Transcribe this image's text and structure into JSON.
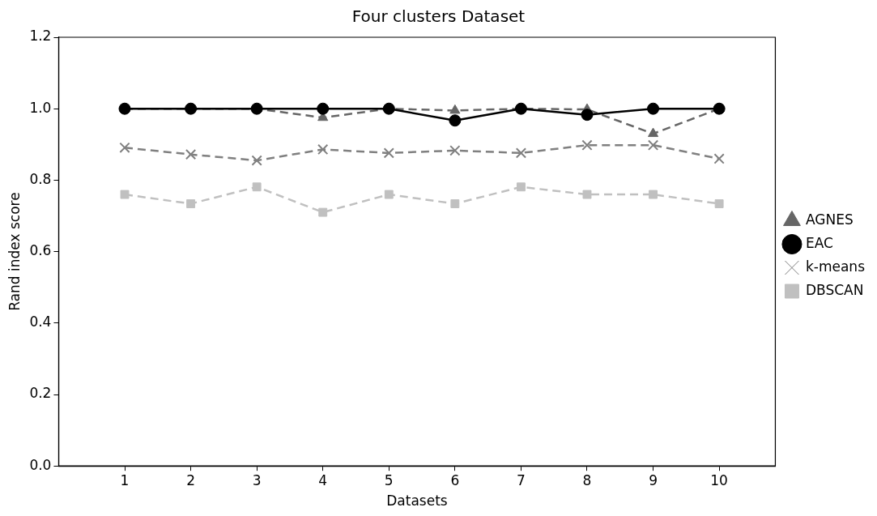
{
  "chart_data": {
    "type": "line",
    "title": "Four clusters Dataset",
    "xlabel": "Datasets",
    "ylabel": "Rand index score",
    "x": [
      1,
      2,
      3,
      4,
      5,
      6,
      7,
      8,
      9,
      10
    ],
    "xlim": [
      0,
      10.85
    ],
    "xticks": [
      1,
      2,
      3,
      4,
      5,
      6,
      7,
      8,
      9,
      10
    ],
    "ylim": [
      0,
      1.2
    ],
    "yticks": [
      {
        "value": 0,
        "label": "0.0"
      },
      {
        "value": 0.2,
        "label": "0.2"
      },
      {
        "value": 0.4,
        "label": "0.4"
      },
      {
        "value": 0.6,
        "label": "0.6"
      },
      {
        "value": 0.8,
        "label": "0.8"
      },
      {
        "value": 1,
        "label": "1.0"
      },
      {
        "value": 1.2,
        "label": "1.2"
      }
    ],
    "grid": false,
    "legend": "right",
    "series": [
      {
        "name": "AGNES",
        "color": "#666666",
        "marker": "triangle",
        "line_style": "dashed",
        "values": [
          1,
          1,
          1,
          0.975,
          1,
          0.995,
          1,
          0.998,
          0.93,
          1
        ]
      },
      {
        "name": "EAC",
        "color": "#000000",
        "marker": "circle",
        "line_style": "solid",
        "values": [
          1,
          1,
          1,
          1,
          1,
          0.967,
          1,
          0.983,
          1,
          1
        ]
      },
      {
        "name": "k-means",
        "color": "#808080",
        "marker": "cross",
        "line_style": "dashed",
        "values": [
          0.891,
          0.872,
          0.855,
          0.886,
          0.876,
          0.883,
          0.876,
          0.898,
          0.898,
          0.86
        ]
      },
      {
        "name": "DBSCAN",
        "color": "#c0c0c0",
        "marker": "square",
        "line_style": "dashed",
        "values": [
          0.76,
          0.734,
          0.781,
          0.71,
          0.76,
          0.734,
          0.781,
          0.76,
          0.76,
          0.734
        ]
      }
    ]
  }
}
